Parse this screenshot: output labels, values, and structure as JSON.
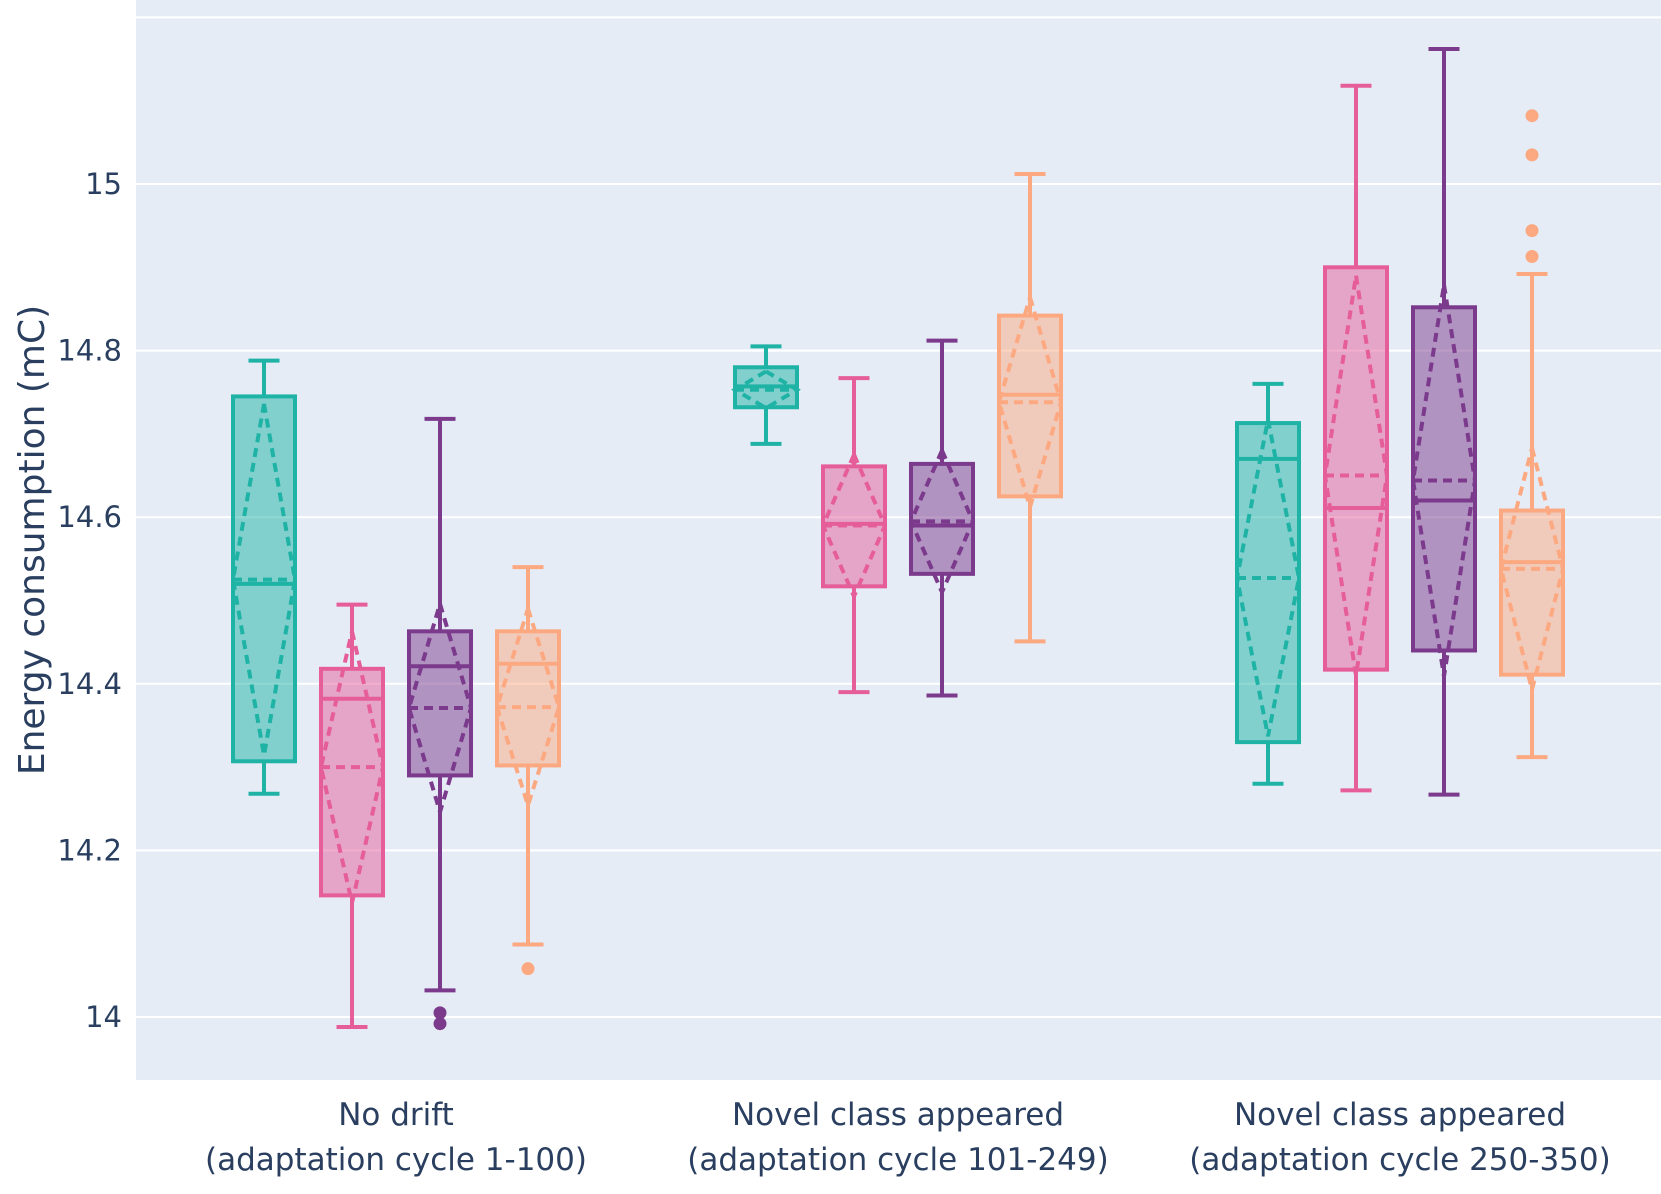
{
  "chart_data": {
    "type": "box",
    "title": "",
    "xlabel": "",
    "ylabel": "Energy consumption (mC)",
    "ylim": [
      13.92,
      15.2
    ],
    "yticks": [
      14,
      14.2,
      14.4,
      14.6,
      14.8,
      15
    ],
    "ytick_labels": [
      "14",
      "14.2",
      "14.4",
      "14.6",
      "14.8",
      "15"
    ],
    "grid": true,
    "legend": "none",
    "categories": [
      {
        "line1": "No drift",
        "line2": "(adaptation cycle 1-100)"
      },
      {
        "line1": "Novel class appeared",
        "line2": "(adaptation cycle 101-249)"
      },
      {
        "line1": "Novel class appeared",
        "line2": "(adaptation cycle 250-350)"
      }
    ],
    "series": [
      {
        "color": "#1fb3a5",
        "boxes": [
          {
            "min": 14.268,
            "q1": 14.307,
            "median": 14.52,
            "q3": 14.745,
            "max": 14.788,
            "mean": 14.525,
            "sd": 0.211,
            "outliers": []
          },
          {
            "min": 14.688,
            "q1": 14.732,
            "median": 14.757,
            "q3": 14.78,
            "max": 14.805,
            "mean": 14.753,
            "sd": 0.022,
            "outliers": []
          },
          {
            "min": 14.28,
            "q1": 14.33,
            "median": 14.67,
            "q3": 14.713,
            "max": 14.76,
            "mean": 14.527,
            "sd": 0.19,
            "outliers": []
          }
        ]
      },
      {
        "color": "#e65e99",
        "boxes": [
          {
            "min": 13.988,
            "q1": 14.146,
            "median": 14.382,
            "q3": 14.418,
            "max": 14.495,
            "mean": 14.3,
            "sd": 0.163,
            "outliers": []
          },
          {
            "min": 14.39,
            "q1": 14.517,
            "median": 14.592,
            "q3": 14.661,
            "max": 14.767,
            "mean": 14.59,
            "sd": 0.085,
            "outliers": []
          },
          {
            "min": 14.272,
            "q1": 14.417,
            "median": 14.611,
            "q3": 14.9,
            "max": 15.118,
            "mean": 14.65,
            "sd": 0.24,
            "outliers": []
          }
        ]
      },
      {
        "color": "#7b3a8c",
        "boxes": [
          {
            "min": 14.032,
            "q1": 14.29,
            "median": 14.421,
            "q3": 14.463,
            "max": 14.718,
            "mean": 14.371,
            "sd": 0.125,
            "outliers": [
              14.005,
              13.992
            ]
          },
          {
            "min": 14.386,
            "q1": 14.532,
            "median": 14.59,
            "q3": 14.664,
            "max": 14.812,
            "mean": 14.595,
            "sd": 0.085,
            "outliers": []
          },
          {
            "min": 14.267,
            "q1": 14.44,
            "median": 14.62,
            "q3": 14.852,
            "max": 15.162,
            "mean": 14.644,
            "sd": 0.235,
            "outliers": []
          }
        ]
      },
      {
        "color": "#fca982",
        "boxes": [
          {
            "min": 14.087,
            "q1": 14.302,
            "median": 14.424,
            "q3": 14.463,
            "max": 14.54,
            "mean": 14.372,
            "sd": 0.118,
            "outliers": [
              14.058
            ]
          },
          {
            "min": 14.451,
            "q1": 14.625,
            "median": 14.747,
            "q3": 14.842,
            "max": 15.012,
            "mean": 14.738,
            "sd": 0.126,
            "outliers": []
          },
          {
            "min": 14.312,
            "q1": 14.411,
            "median": 14.546,
            "q3": 14.608,
            "max": 14.892,
            "mean": 14.538,
            "sd": 0.145,
            "outliers": [
              15.082,
              15.035,
              14.944,
              14.913
            ]
          }
        ]
      }
    ]
  }
}
